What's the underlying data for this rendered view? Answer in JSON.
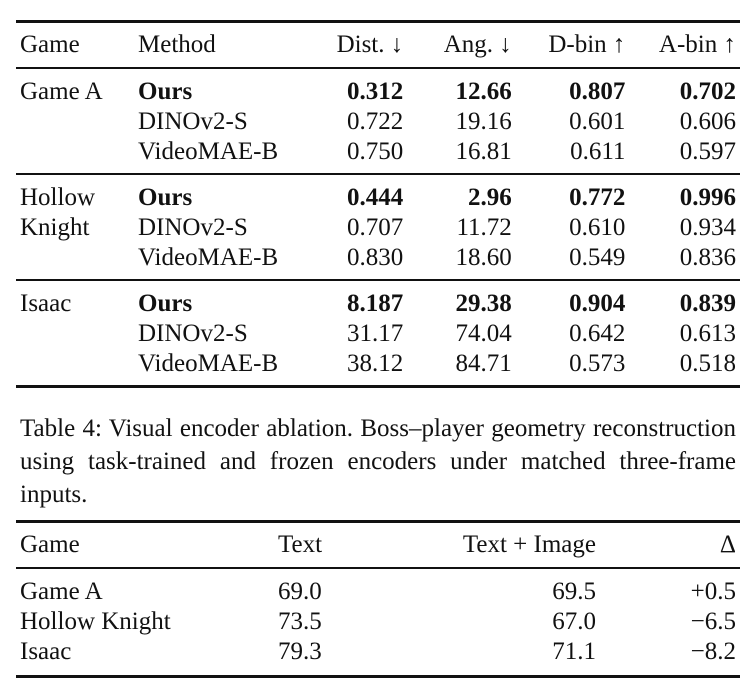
{
  "table1": {
    "headers": [
      "Game",
      "Method",
      "Dist. ↓",
      "Ang. ↓",
      "D-bin ↑",
      "A-bin ↑"
    ],
    "groups": [
      {
        "game_lines": [
          "Game A",
          ""
        ],
        "rows": [
          {
            "method": "Ours",
            "dist": "0.312",
            "ang": "12.66",
            "dbin": "0.807",
            "abin": "0.702"
          },
          {
            "method": "DINOv2-S",
            "dist": "0.722",
            "ang": "19.16",
            "dbin": "0.601",
            "abin": "0.606"
          },
          {
            "method": "VideoMAE-B",
            "dist": "0.750",
            "ang": "16.81",
            "dbin": "0.611",
            "abin": "0.597"
          }
        ]
      },
      {
        "game_lines": [
          "Hollow",
          "Knight"
        ],
        "rows": [
          {
            "method": "Ours",
            "dist": "0.444",
            "ang": "2.96",
            "dbin": "0.772",
            "abin": "0.996"
          },
          {
            "method": "DINOv2-S",
            "dist": "0.707",
            "ang": "11.72",
            "dbin": "0.610",
            "abin": "0.934"
          },
          {
            "method": "VideoMAE-B",
            "dist": "0.830",
            "ang": "18.60",
            "dbin": "0.549",
            "abin": "0.836"
          }
        ]
      },
      {
        "game_lines": [
          "Isaac",
          ""
        ],
        "rows": [
          {
            "method": "Ours",
            "dist": "8.187",
            "ang": "29.38",
            "dbin": "0.904",
            "abin": "0.839"
          },
          {
            "method": "DINOv2-S",
            "dist": "31.17",
            "ang": "74.04",
            "dbin": "0.642",
            "abin": "0.613"
          },
          {
            "method": "VideoMAE-B",
            "dist": "38.12",
            "ang": "84.71",
            "dbin": "0.573",
            "abin": "0.518"
          }
        ]
      }
    ]
  },
  "caption": "Table 4: Visual encoder ablation. Boss–player geometry reconstruction using task-trained and frozen encoders under matched three-frame inputs.",
  "table2": {
    "headers": [
      "Game",
      "Text",
      "Text + Image",
      "Δ"
    ],
    "rows": [
      {
        "game": "Game A",
        "text": "69.0",
        "text_image": "69.5",
        "delta": "+0.5"
      },
      {
        "game": "Hollow Knight",
        "text": "73.5",
        "text_image": "67.0",
        "delta": "−6.5"
      },
      {
        "game": "Isaac",
        "text": "79.3",
        "text_image": "71.1",
        "delta": "−8.2"
      }
    ]
  }
}
